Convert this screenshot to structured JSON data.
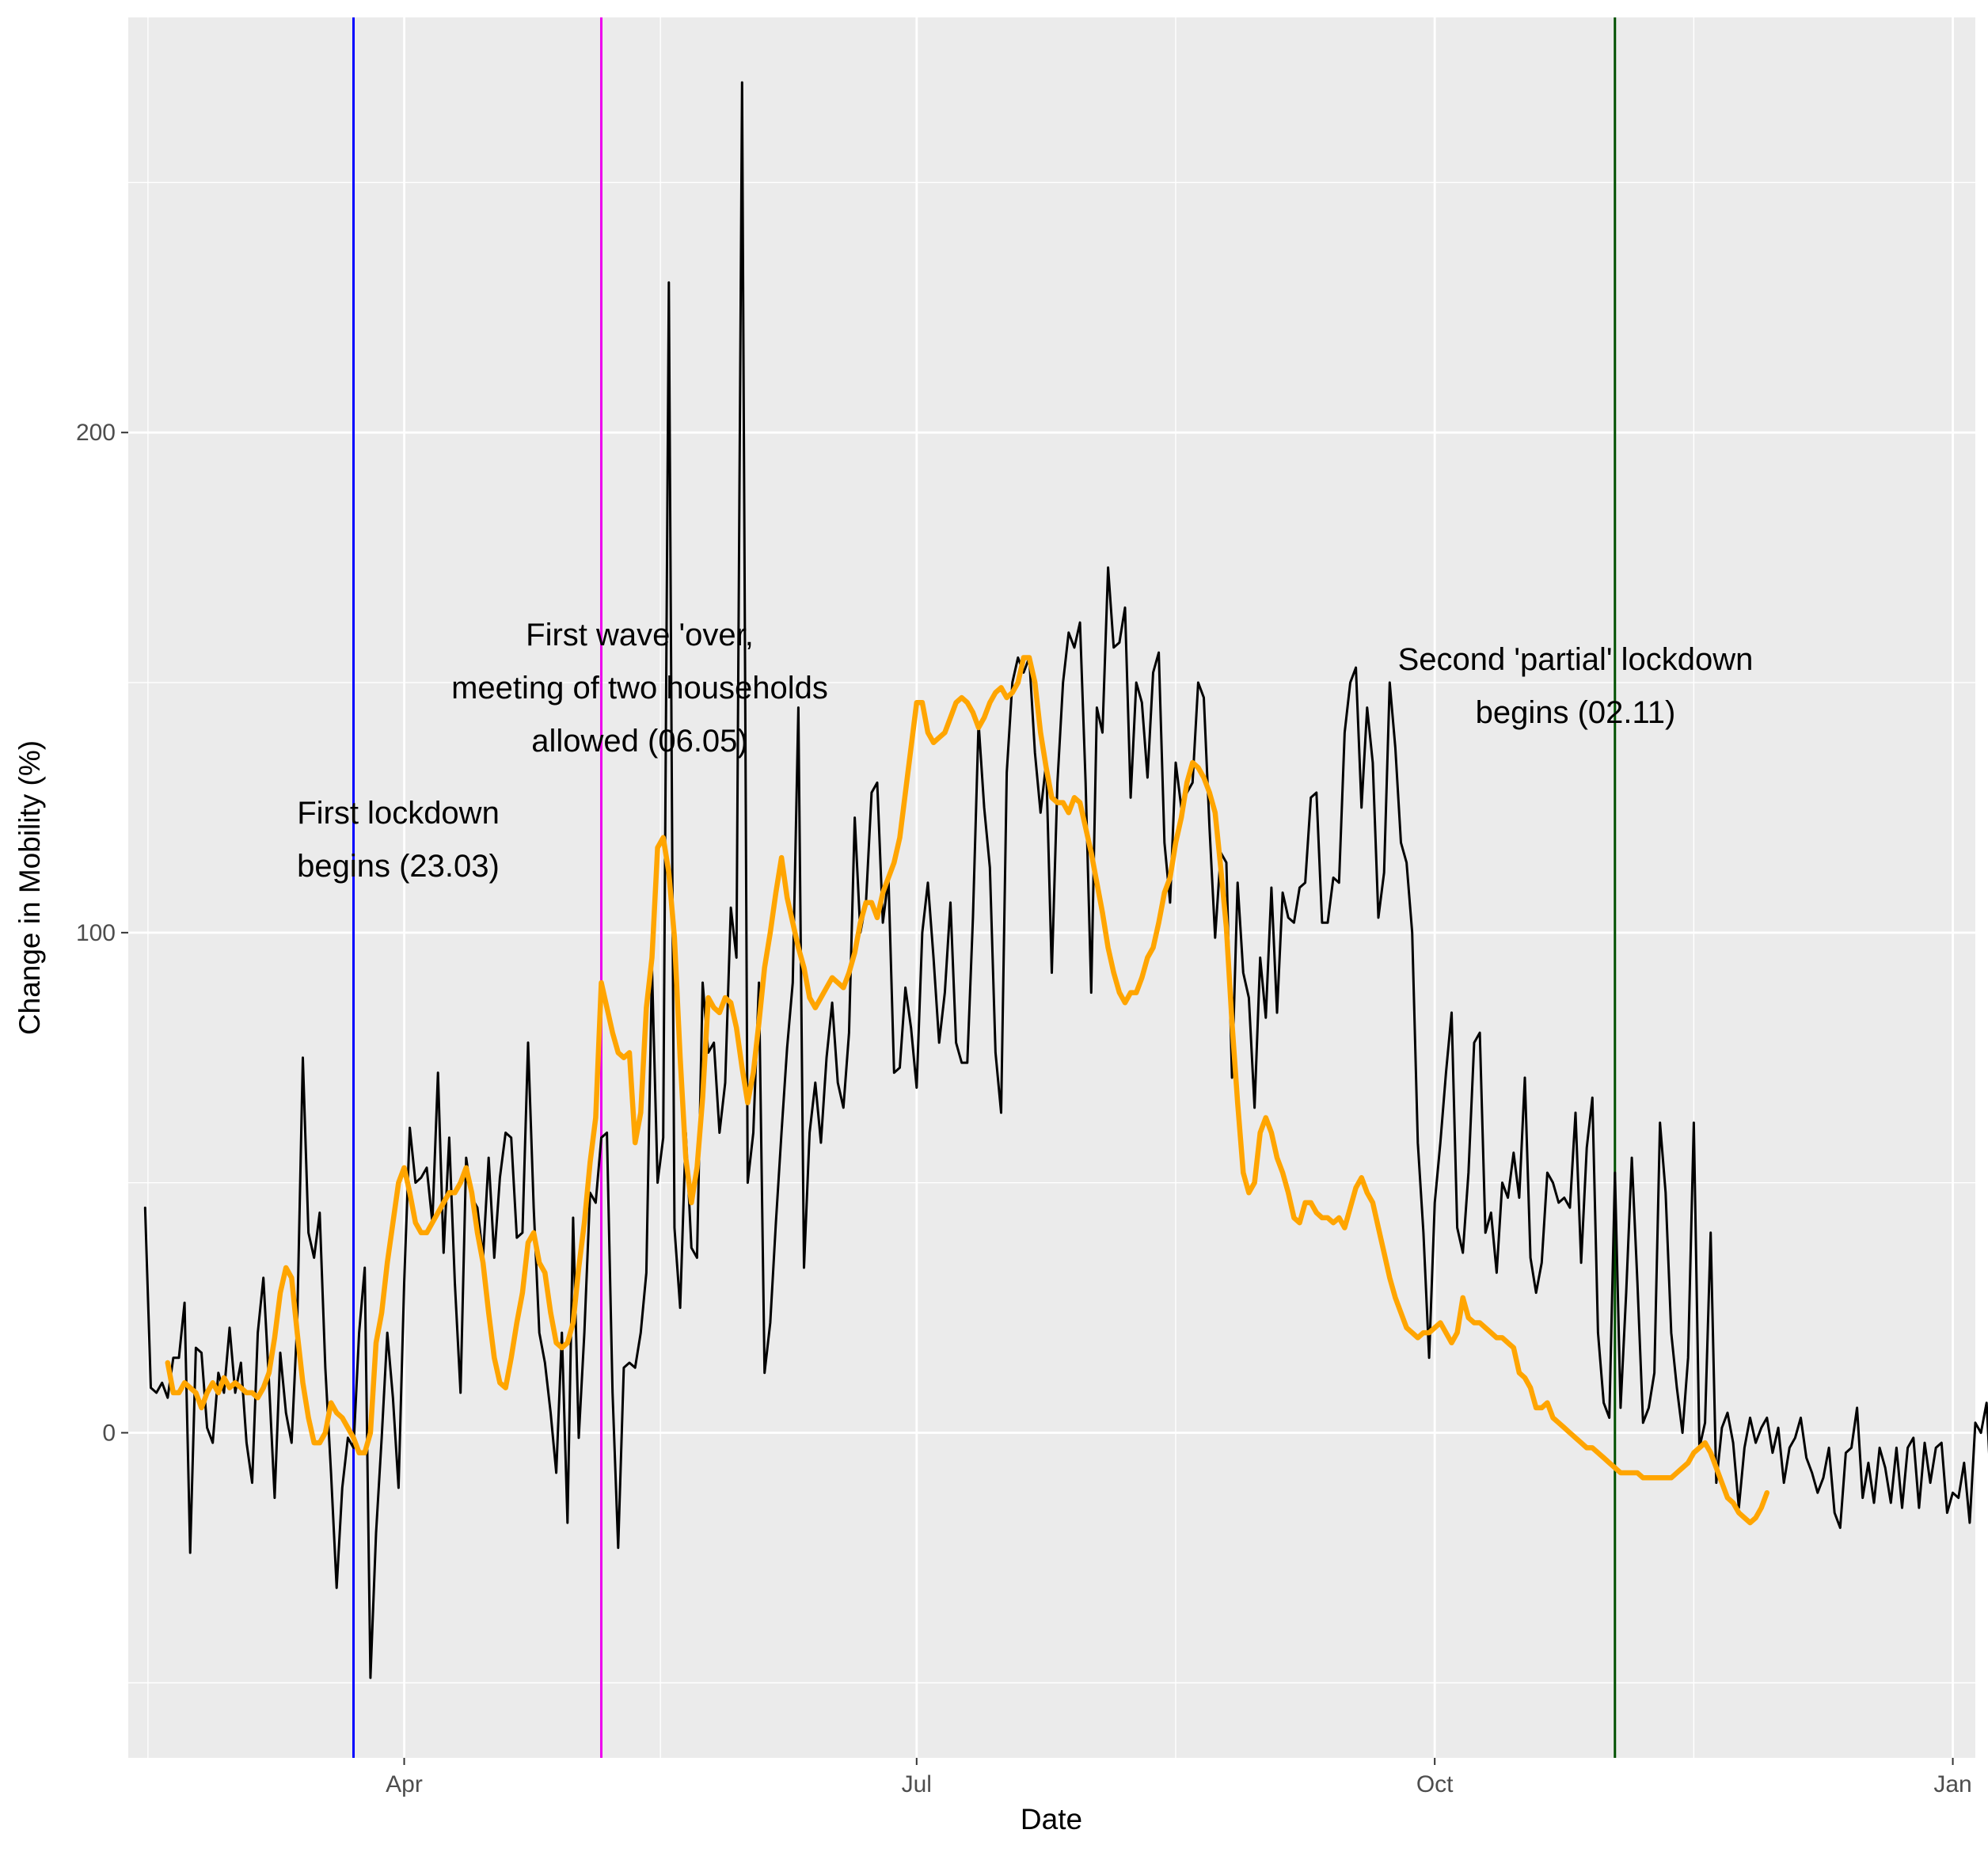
{
  "chart_data": {
    "type": "line",
    "xlabel": "Date",
    "ylabel": "Change in Mobility (%)",
    "x_ticks": [
      "Apr",
      "Jul",
      "Oct",
      "Jan"
    ],
    "y_ticks": [
      0,
      100,
      200
    ],
    "x_range": [
      "2020-02-12",
      "2021-01-05"
    ],
    "ylim": [
      -65,
      283
    ],
    "x_start": "2020-02-15",
    "series": [
      {
        "color": "#000000",
        "values": [
          45,
          9,
          8,
          10,
          7,
          15,
          15,
          26,
          -24,
          17,
          16,
          1,
          -2,
          12,
          8,
          21,
          8,
          14,
          -2,
          -10,
          20,
          31,
          10,
          -13,
          16,
          4,
          -2,
          22,
          75,
          40,
          35,
          44,
          13,
          -8,
          -31,
          -11,
          -1,
          -3,
          20,
          33,
          -49,
          -20,
          -1,
          20,
          7,
          -11,
          30,
          61,
          50,
          51,
          53,
          42,
          72,
          36,
          59,
          30,
          8,
          55,
          47,
          45,
          35,
          55,
          35,
          51,
          60,
          59,
          39,
          40,
          78,
          45,
          20,
          14,
          4,
          -8,
          20,
          -18,
          43,
          -1,
          20,
          48,
          46,
          59,
          60,
          8,
          -23,
          13,
          14,
          13,
          20,
          32,
          93,
          50,
          59,
          230,
          41,
          25,
          60,
          37,
          35,
          90,
          76,
          78,
          60,
          70,
          105,
          95,
          270,
          50,
          60,
          90,
          12,
          22,
          42,
          60,
          77,
          90,
          145,
          33,
          60,
          70,
          58,
          75,
          86,
          70,
          65,
          80,
          123,
          100,
          106,
          128,
          130,
          102,
          111,
          72,
          73,
          89,
          81,
          69,
          100,
          110,
          95,
          78,
          88,
          106,
          78,
          74,
          74,
          103,
          142,
          125,
          113,
          76,
          64,
          132,
          150,
          155,
          152,
          155,
          136,
          124,
          134,
          92,
          130,
          150,
          160,
          157,
          162,
          130,
          88,
          145,
          140,
          173,
          157,
          158,
          165,
          127,
          150,
          146,
          131,
          152,
          156,
          118,
          106,
          134,
          125,
          128,
          130,
          150,
          147,
          121,
          99,
          116,
          114,
          71,
          110,
          92,
          87,
          65,
          95,
          83,
          109,
          84,
          108,
          103,
          102,
          109,
          110,
          127,
          128,
          102,
          102,
          111,
          110,
          140,
          150,
          153,
          125,
          145,
          134,
          103,
          112,
          150,
          137,
          118,
          114,
          100,
          58,
          40,
          15,
          46,
          58,
          72,
          84,
          41,
          36,
          52,
          78,
          80,
          40,
          44,
          32,
          50,
          47,
          56,
          47,
          71,
          35,
          28,
          34,
          52,
          50,
          46,
          47,
          45,
          64,
          34,
          57,
          67,
          20,
          6,
          3,
          52,
          5,
          28,
          55,
          30,
          2,
          5,
          12,
          62,
          48,
          20,
          9,
          0,
          15,
          62,
          -3,
          2,
          40,
          -10,
          1,
          4,
          -2,
          -15,
          -3,
          3,
          -2,
          1,
          3,
          -4,
          1,
          -10,
          -3,
          -1,
          3,
          -5,
          -8,
          -12,
          -9,
          -3,
          -16,
          -19,
          -4,
          -3,
          5,
          -13,
          -6,
          -14,
          -3,
          -7,
          -14,
          -3,
          -15,
          -3,
          -1,
          -15,
          -2,
          -10,
          -3,
          -2,
          -16,
          -12,
          -13,
          -6,
          -18,
          2,
          0,
          6,
          -16,
          -24,
          -32,
          -8,
          -8,
          -27,
          5,
          8,
          10,
          -1
        ]
      },
      {
        "color": "#ffa500",
        "offset": 4,
        "values": [
          14,
          8,
          8,
          10,
          9,
          8,
          5,
          8,
          10,
          8,
          11,
          9,
          10,
          9,
          8,
          8,
          7,
          9,
          12,
          19,
          28,
          33,
          31,
          20,
          10,
          3,
          -2,
          -2,
          0,
          6,
          4,
          3,
          1,
          -1,
          -4,
          -4,
          0,
          18,
          24,
          34,
          42,
          50,
          53,
          48,
          42,
          40,
          40,
          42,
          44,
          46,
          48,
          48,
          50,
          53,
          48,
          40,
          34,
          24,
          15,
          10,
          9,
          15,
          22,
          28,
          38,
          40,
          34,
          32,
          24,
          18,
          17,
          18,
          22,
          33,
          42,
          54,
          63,
          90,
          85,
          80,
          76,
          75,
          76,
          58,
          64,
          85,
          95,
          117,
          119,
          112,
          99,
          75,
          55,
          46,
          53,
          67,
          87,
          85,
          84,
          87,
          86,
          81,
          73,
          66,
          72,
          82,
          93,
          100,
          108,
          115,
          107,
          102,
          97,
          93,
          87,
          85,
          87,
          89,
          91,
          90,
          89,
          92,
          96,
          102,
          106,
          106,
          103,
          108,
          111,
          114,
          119,
          128,
          137,
          146,
          146,
          140,
          138,
          139,
          140,
          143,
          146,
          147,
          146,
          144,
          141,
          143,
          146,
          148,
          149,
          147,
          148,
          150,
          155,
          155,
          150,
          140,
          133,
          127,
          126,
          126,
          124,
          127,
          126,
          121,
          116,
          110,
          104,
          97,
          92,
          88,
          86,
          88,
          88,
          91,
          95,
          97,
          102,
          108,
          111,
          118,
          123,
          130,
          134,
          133,
          131,
          128,
          124,
          113,
          101,
          82,
          66,
          52,
          48,
          50,
          60,
          63,
          60,
          55,
          52,
          48,
          43,
          42,
          46,
          46,
          44,
          43,
          43,
          42,
          43,
          41,
          45,
          49,
          51,
          48,
          46,
          41,
          36,
          31,
          27,
          24,
          21,
          20,
          19,
          20,
          20,
          21,
          22,
          20,
          18,
          20,
          27,
          23,
          22,
          22,
          21,
          20,
          19,
          19,
          18,
          17,
          12,
          11,
          9,
          5,
          5,
          6,
          3,
          2,
          1,
          0,
          -1,
          -2,
          -3,
          -3,
          -4,
          -5,
          -6,
          -7,
          -8,
          -8,
          -8,
          -8,
          -9,
          -9,
          -9,
          -9,
          -9,
          -9,
          -8,
          -7,
          -6,
          -4,
          -3,
          -2,
          -4,
          -7,
          -10,
          -13,
          -14,
          -16,
          -17,
          -18,
          -17,
          -15,
          -12
        ]
      }
    ],
    "events": [
      {
        "date": "2020-03-23",
        "color": "#0000ff",
        "label_lines": [
          "First lockdown",
          "begins (23.03)"
        ]
      },
      {
        "date": "2020-05-06",
        "color": "#ee00ee",
        "label_lines": [
          "First wave 'over,",
          "meeting of two households",
          "allowed (06.05)"
        ]
      },
      {
        "date": "2020-11-02",
        "color": "#005000",
        "label_lines": [
          "Second 'partial' lockdown",
          "begins (02.11)"
        ]
      }
    ],
    "grid": true,
    "legend": "none"
  }
}
